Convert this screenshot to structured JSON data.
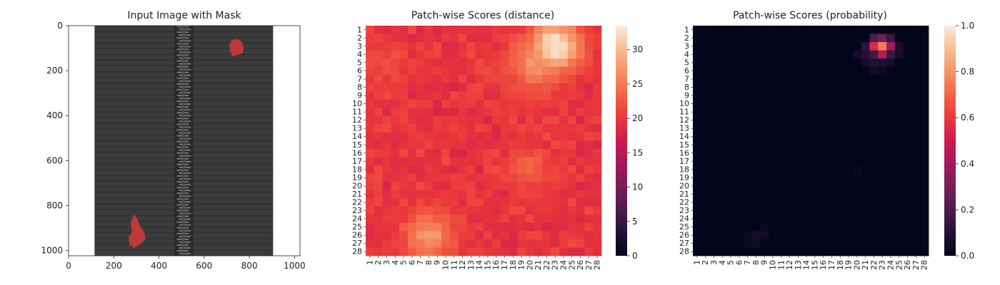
{
  "chart_data": [
    {
      "type": "image",
      "title": "Input Image with Mask",
      "xlim": [
        0,
        1024
      ],
      "ylim": [
        1024,
        0
      ],
      "xticks": [
        0,
        200,
        400,
        600,
        800,
        1000
      ],
      "yticks": [
        0,
        200,
        400,
        600,
        800,
        1000
      ],
      "image": {
        "fabric_extent_x": [
          115,
          905
        ],
        "zipper_center_x": 510,
        "zipper_width": 85,
        "background_color": "#ffffff",
        "fabric_color": "#3b3b3b",
        "teeth_color": "#6e6e6e"
      },
      "mask_regions": [
        {
          "name": "defect-top-right",
          "center": [
            740,
            95
          ],
          "color": "#d63a3a"
        },
        {
          "name": "defect-bottom-left",
          "center": [
            300,
            915
          ],
          "color": "#d63a3a"
        }
      ]
    },
    {
      "type": "heatmap",
      "title": "Patch-wise Scores (distance)",
      "rows": 28,
      "cols": 28,
      "tick_labels": [
        "1",
        "2",
        "3",
        "4",
        "5",
        "6",
        "7",
        "8",
        "9",
        "10",
        "11",
        "12",
        "13",
        "14",
        "15",
        "16",
        "17",
        "18",
        "19",
        "20",
        "21",
        "22",
        "23",
        "24",
        "25",
        "26",
        "27",
        "28"
      ],
      "colormap": "rocket",
      "colorbar": {
        "min": 0,
        "max": 33.5,
        "ticks": [
          0,
          5,
          10,
          15,
          20,
          25,
          30
        ]
      },
      "base_value": 19,
      "hotspots": [
        {
          "row": 3,
          "col": 23,
          "value": 33,
          "spread": 2.2
        },
        {
          "row": 5,
          "col": 21,
          "value": 27,
          "spread": 2.5
        },
        {
          "row": 26,
          "col": 8,
          "value": 27,
          "spread": 2.2
        },
        {
          "row": 18,
          "col": 20,
          "value": 23,
          "spread": 2.0
        },
        {
          "row": 5,
          "col": 3,
          "value": 22,
          "spread": 2.0
        }
      ]
    },
    {
      "type": "heatmap",
      "title": "Patch-wise Scores (probability)",
      "rows": 28,
      "cols": 28,
      "tick_labels": [
        "1",
        "2",
        "3",
        "4",
        "5",
        "6",
        "7",
        "8",
        "9",
        "10",
        "11",
        "12",
        "13",
        "14",
        "15",
        "16",
        "17",
        "18",
        "19",
        "20",
        "21",
        "22",
        "23",
        "24",
        "25",
        "26",
        "27",
        "28"
      ],
      "colormap": "rocket",
      "colorbar": {
        "min": 0,
        "max": 1.0,
        "ticks": [
          0.0,
          0.2,
          0.4,
          0.6,
          0.8,
          1.0
        ]
      },
      "base_value": 0.0,
      "cells": [
        {
          "row": 3,
          "col": 23,
          "value": 0.75
        },
        {
          "row": 3,
          "col": 22,
          "value": 0.55
        },
        {
          "row": 4,
          "col": 23,
          "value": 0.45
        },
        {
          "row": 3,
          "col": 24,
          "value": 0.4
        },
        {
          "row": 2,
          "col": 23,
          "value": 0.3
        },
        {
          "row": 2,
          "col": 22,
          "value": 0.2
        },
        {
          "row": 2,
          "col": 24,
          "value": 0.15
        },
        {
          "row": 4,
          "col": 22,
          "value": 0.18
        },
        {
          "row": 4,
          "col": 24,
          "value": 0.15
        },
        {
          "row": 3,
          "col": 21,
          "value": 0.12
        },
        {
          "row": 4,
          "col": 21,
          "value": 0.1
        },
        {
          "row": 5,
          "col": 22,
          "value": 0.1
        },
        {
          "row": 5,
          "col": 23,
          "value": 0.08
        },
        {
          "row": 3,
          "col": 25,
          "value": 0.08
        },
        {
          "row": 4,
          "col": 25,
          "value": 0.06
        },
        {
          "row": 5,
          "col": 21,
          "value": 0.06
        },
        {
          "row": 5,
          "col": 24,
          "value": 0.06
        },
        {
          "row": 6,
          "col": 22,
          "value": 0.05
        },
        {
          "row": 6,
          "col": 23,
          "value": 0.04
        },
        {
          "row": 4,
          "col": 20,
          "value": 0.05
        },
        {
          "row": 26,
          "col": 8,
          "value": 0.06
        },
        {
          "row": 26,
          "col": 9,
          "value": 0.05
        },
        {
          "row": 27,
          "col": 8,
          "value": 0.05
        },
        {
          "row": 26,
          "col": 7,
          "value": 0.03
        },
        {
          "row": 25,
          "col": 9,
          "value": 0.03
        },
        {
          "row": 27,
          "col": 7,
          "value": 0.03
        },
        {
          "row": 18,
          "col": 20,
          "value": 0.03
        },
        {
          "row": 19,
          "col": 20,
          "value": 0.02
        }
      ]
    }
  ]
}
